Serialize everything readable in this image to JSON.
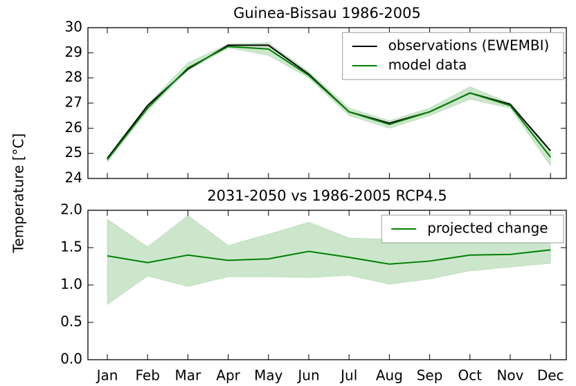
{
  "chart_data": [
    {
      "type": "line",
      "title": "Guinea-Bissau  1986-2005",
      "ylabel": "Temperature [°C]",
      "ylim": [
        24,
        30
      ],
      "yticks": [
        24,
        25,
        26,
        27,
        28,
        29,
        30
      ],
      "legend": "upper right",
      "series": [
        {
          "name": "observations (EWEMBI)",
          "color": "#000000",
          "values": [
            24.8,
            26.9,
            28.35,
            29.3,
            29.3,
            28.15,
            26.65,
            26.2,
            26.65,
            27.4,
            26.95,
            25.1
          ]
        },
        {
          "name": "model data",
          "color": "#008000",
          "values": [
            24.75,
            26.8,
            28.4,
            29.25,
            29.15,
            28.1,
            26.65,
            26.15,
            26.65,
            27.4,
            26.9,
            24.85
          ],
          "band_low": [
            24.65,
            26.7,
            28.3,
            29.2,
            28.9,
            28.0,
            26.5,
            26.0,
            26.5,
            27.15,
            26.8,
            24.5
          ],
          "band_high": [
            24.85,
            26.95,
            28.6,
            29.35,
            29.4,
            28.25,
            26.8,
            26.3,
            26.8,
            27.65,
            27.0,
            25.0
          ]
        }
      ]
    },
    {
      "type": "line",
      "title": "2031-2050 vs 1986-2005 RCP4.5",
      "categories": [
        "Jan",
        "Feb",
        "Mar",
        "Apr",
        "May",
        "Jun",
        "Jul",
        "Aug",
        "Sep",
        "Oct",
        "Nov",
        "Dec"
      ],
      "ylim": [
        0,
        2
      ],
      "yticks": [
        {
          "value": 0,
          "label": "0.0"
        },
        0.5,
        {
          "value": 1,
          "label": "1.0"
        },
        1.5,
        {
          "value": 2,
          "label": "2.0"
        }
      ],
      "legend": "upper right",
      "series": [
        {
          "name": "projected change",
          "color": "#008000",
          "values": [
            1.39,
            1.3,
            1.4,
            1.33,
            1.35,
            1.45,
            1.37,
            1.28,
            1.32,
            1.4,
            1.41,
            1.47
          ],
          "band_low": [
            0.74,
            1.12,
            0.98,
            1.11,
            1.11,
            1.1,
            1.13,
            1.01,
            1.08,
            1.19,
            1.24,
            1.29
          ],
          "band_high": [
            1.88,
            1.51,
            1.93,
            1.53,
            1.68,
            1.84,
            1.63,
            1.61,
            1.64,
            1.66,
            1.65,
            1.67
          ]
        }
      ]
    }
  ]
}
